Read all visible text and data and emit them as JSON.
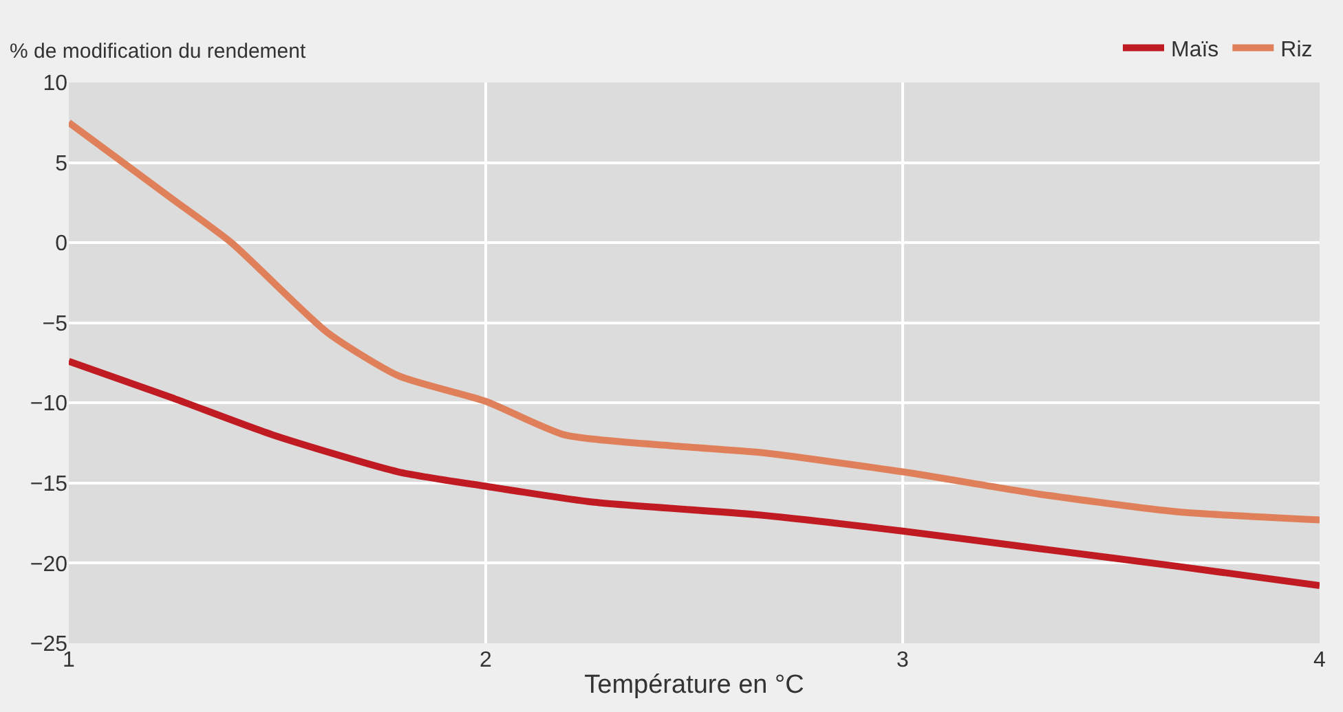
{
  "chart_data": {
    "type": "line",
    "ylabel": "% de modification du rendement",
    "xlabel": "Température en °C",
    "series": [
      {
        "name": "Maïs",
        "color": "#c01a22",
        "x": [
          1,
          1.25,
          1.49,
          1.79,
          2,
          2.26,
          2.66,
          3,
          3.33,
          3.66,
          4
        ],
        "values": [
          -7.4,
          -9.7,
          -12,
          -14.3,
          -15.2,
          -16.2,
          -17,
          -18,
          -19.1,
          -20.2,
          -21.4
        ]
      },
      {
        "name": "Riz",
        "color": "#e0805a",
        "x": [
          1,
          1.25,
          1.39,
          1.62,
          1.79,
          2,
          2.19,
          2.46,
          2.66,
          3,
          3.33,
          3.66,
          4
        ],
        "values": [
          7.5,
          2.7,
          0,
          -5.6,
          -8.3,
          -9.9,
          -12,
          -12.7,
          -13.1,
          -14.3,
          -15.7,
          -16.8,
          -17.3
        ]
      }
    ],
    "xlim": [
      1,
      4
    ],
    "xticks": [
      1,
      2,
      3,
      4
    ],
    "ylim": [
      -25,
      10
    ],
    "yticks": [
      -25,
      -20,
      -15,
      -10,
      -5,
      0,
      5,
      10
    ],
    "grid": true,
    "legend": "top right",
    "marker": "none",
    "line_style": "solid"
  }
}
